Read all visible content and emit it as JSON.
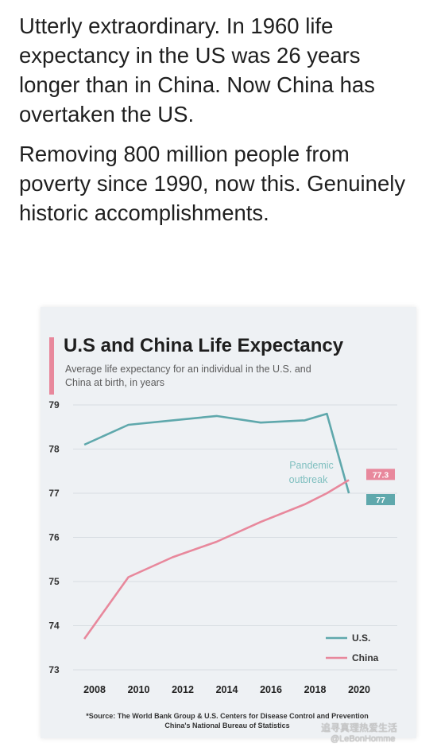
{
  "post": {
    "paragraph1": "Utterly extraordinary. In 1960 life expectancy in the US was 26 years longer than in China. Now China has overtaken the US.",
    "paragraph2": "Removing 800 million people from poverty since 1990, now this. Genuinely historic accomplishments."
  },
  "chart_data": {
    "type": "line",
    "title": "U.S and China Life Expectancy",
    "subtitle": "Average life expectancy for an individual in the U.S. and China at birth, in years",
    "x": [
      2007.5,
      2009.5,
      2011.5,
      2013.5,
      2015.5,
      2017.5,
      2018.5,
      2019.5
    ],
    "x_ticks": [
      2008,
      2010,
      2012,
      2014,
      2016,
      2018,
      2020
    ],
    "y_ticks": [
      73,
      74,
      75,
      76,
      77,
      78,
      79
    ],
    "ylim": [
      73,
      79
    ],
    "grid": true,
    "legend_position": "bottom-right",
    "series": [
      {
        "name": "U.S.",
        "color": "#5fa8ac",
        "values": [
          78.1,
          78.55,
          78.65,
          78.75,
          78.6,
          78.65,
          78.8,
          77.0
        ]
      },
      {
        "name": "China",
        "color": "#e8889c",
        "values": [
          73.7,
          75.1,
          75.55,
          75.9,
          76.35,
          76.75,
          77.0,
          77.3
        ]
      }
    ],
    "end_labels": [
      {
        "series": "China",
        "text": "77.3",
        "color": "#e8889c"
      },
      {
        "series": "U.S.",
        "text": "77",
        "color": "#5fa8ac"
      }
    ],
    "annotation": {
      "text": [
        "Pandemic",
        "outbreak"
      ],
      "color": "#7fbfbf"
    },
    "source": [
      "*Source: The World Bank Group & U.S. Centers for Disease Control and Prevention",
      "China's National Bureau of Statistics"
    ]
  },
  "watermark": {
    "text": "追寻真理热爱生活",
    "handle": "@LeBonHomme"
  }
}
